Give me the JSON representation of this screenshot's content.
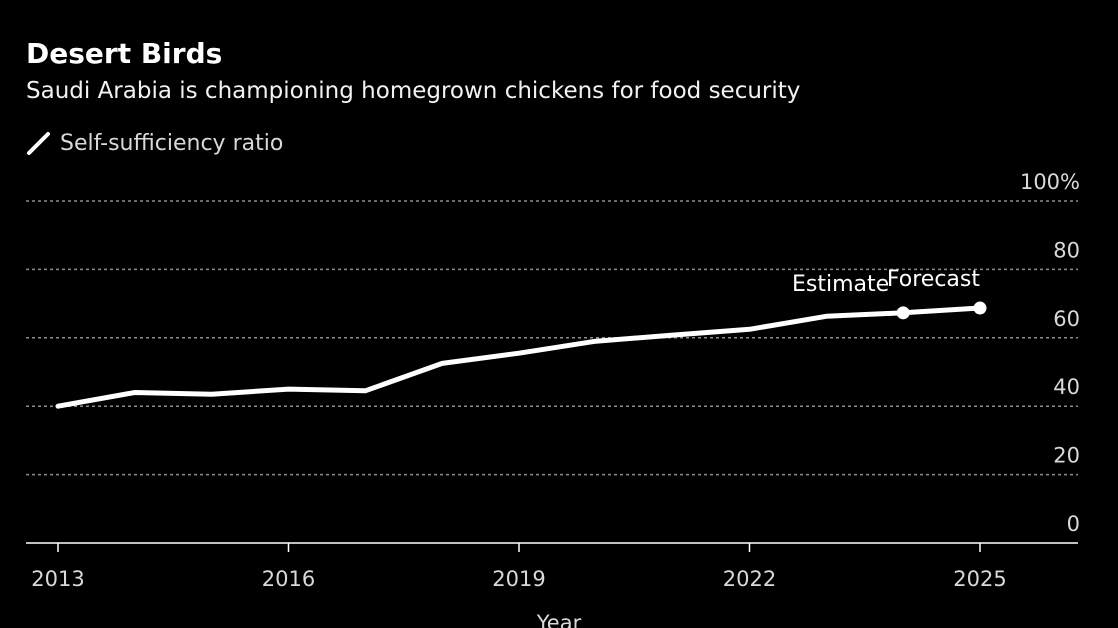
{
  "colors": {
    "background": "#000000",
    "line": "#ffffff",
    "grid": "#8c8c8c",
    "text": "#ffffff",
    "muted": "#d9d9d9"
  },
  "chart_data": {
    "type": "line",
    "title": "Desert Birds",
    "subtitle": "Saudi Arabia is championing homegrown chickens for food security",
    "xlabel": "Year",
    "ylabel": "",
    "x": [
      2013,
      2014,
      2015,
      2016,
      2017,
      2018,
      2019,
      2020,
      2021,
      2022,
      2023,
      2024,
      2025
    ],
    "series": [
      {
        "name": "Self-sufficiency ratio",
        "values": [
          40,
          44,
          43.5,
          45,
          44.5,
          52.5,
          55.5,
          59,
          60.8,
          62.5,
          66.3,
          67.3,
          68.7
        ]
      }
    ],
    "xlim": [
      2012.6,
      2026.2
    ],
    "ylim": [
      0,
      100
    ],
    "x_ticks": [
      2013,
      2016,
      2019,
      2022,
      2025
    ],
    "y_ticks": [
      {
        "value": 0,
        "label": "0"
      },
      {
        "value": 20,
        "label": "20"
      },
      {
        "value": 40,
        "label": "40"
      },
      {
        "value": 60,
        "label": "60"
      },
      {
        "value": 80,
        "label": "80"
      },
      {
        "value": 100,
        "label": "100%"
      }
    ],
    "grid": true,
    "y_axis_side": "right",
    "legend": "top-left",
    "annotations": [
      {
        "text": "Estimate",
        "x": 2024,
        "y": 67.3,
        "marker": true
      },
      {
        "text": "Forecast",
        "x": 2025,
        "y": 68.7,
        "marker": true
      }
    ]
  }
}
